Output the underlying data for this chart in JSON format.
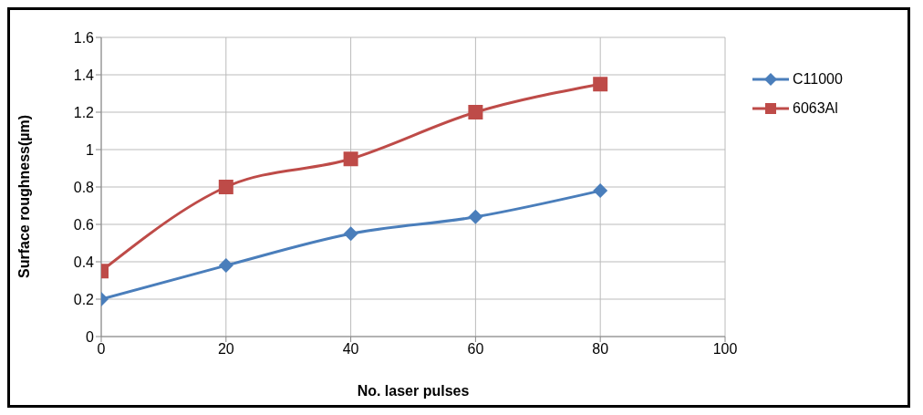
{
  "chart_data": {
    "type": "line",
    "xlabel": "No. laser pulses",
    "ylabel": "Surface roughness(µm)",
    "x": [
      0,
      20,
      40,
      60,
      80
    ],
    "series": [
      {
        "name": "C11000",
        "color": "#4a7ebb",
        "values": [
          0.2,
          0.38,
          0.55,
          0.64,
          0.78
        ],
        "marker": "diamond"
      },
      {
        "name": "6063Al",
        "color": "#be4b48",
        "values": [
          0.35,
          0.8,
          0.95,
          1.2,
          1.35
        ],
        "marker": "square"
      }
    ],
    "xlim": [
      0,
      100
    ],
    "xticks": [
      0,
      20,
      40,
      60,
      80,
      100
    ],
    "ylim": [
      0,
      1.6
    ],
    "yticks": [
      0,
      0.2,
      0.4,
      0.6,
      0.8,
      1,
      1.2,
      1.4,
      1.6
    ],
    "grid": true,
    "legend": "right",
    "line_style": "solid"
  }
}
